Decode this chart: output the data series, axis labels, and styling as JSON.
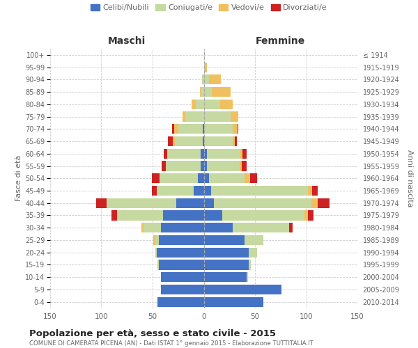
{
  "age_groups": [
    "0-4",
    "5-9",
    "10-14",
    "15-19",
    "20-24",
    "25-29",
    "30-34",
    "35-39",
    "40-44",
    "45-49",
    "50-54",
    "55-59",
    "60-64",
    "65-69",
    "70-74",
    "75-79",
    "80-84",
    "85-89",
    "90-94",
    "95-99",
    "100+"
  ],
  "birth_years": [
    "2010-2014",
    "2005-2009",
    "2000-2004",
    "1995-1999",
    "1990-1994",
    "1985-1989",
    "1980-1984",
    "1975-1979",
    "1970-1974",
    "1965-1969",
    "1960-1964",
    "1955-1959",
    "1950-1954",
    "1945-1949",
    "1940-1944",
    "1935-1939",
    "1930-1934",
    "1925-1929",
    "1920-1924",
    "1915-1919",
    "≤ 1914"
  ],
  "colors": {
    "celibe": "#4472C4",
    "coniugato": "#c5d9a0",
    "vedovo": "#f0c060",
    "divorziato": "#cc2222"
  },
  "maschi": {
    "celibe": [
      45,
      42,
      42,
      44,
      46,
      44,
      42,
      40,
      27,
      10,
      6,
      3,
      3,
      1,
      1,
      0,
      0,
      0,
      0,
      0,
      0
    ],
    "coniugato": [
      0,
      0,
      0,
      1,
      1,
      3,
      17,
      45,
      68,
      36,
      37,
      34,
      33,
      27,
      24,
      18,
      8,
      3,
      2,
      0,
      0
    ],
    "vedovo": [
      0,
      0,
      0,
      0,
      0,
      2,
      2,
      0,
      0,
      0,
      0,
      0,
      0,
      2,
      4,
      3,
      4,
      1,
      0,
      0,
      0
    ],
    "divorziato": [
      0,
      0,
      0,
      0,
      0,
      0,
      0,
      5,
      10,
      5,
      8,
      4,
      3,
      5,
      2,
      0,
      0,
      0,
      0,
      0,
      0
    ]
  },
  "femmine": {
    "celibe": [
      58,
      76,
      42,
      44,
      44,
      40,
      28,
      18,
      10,
      7,
      5,
      3,
      3,
      0,
      0,
      0,
      0,
      0,
      0,
      0,
      0
    ],
    "coniugata": [
      0,
      0,
      1,
      2,
      8,
      18,
      55,
      80,
      95,
      95,
      35,
      32,
      33,
      28,
      28,
      26,
      16,
      8,
      5,
      1,
      0
    ],
    "vedova": [
      0,
      0,
      0,
      0,
      0,
      0,
      0,
      4,
      6,
      4,
      5,
      2,
      2,
      2,
      5,
      8,
      12,
      18,
      12,
      2,
      0
    ],
    "divorziata": [
      0,
      0,
      0,
      0,
      0,
      0,
      4,
      5,
      12,
      5,
      7,
      5,
      4,
      2,
      1,
      0,
      0,
      0,
      0,
      0,
      0
    ]
  },
  "xlim": 150,
  "title": "Popolazione per età, sesso e stato civile - 2015",
  "subtitle": "COMUNE DI CAMERATA PICENA (AN) - Dati ISTAT 1° gennaio 2015 - Elaborazione TUTTITALIA.IT",
  "ylabel": "Fasce di età",
  "ylabel_right": "Anni di nascita",
  "xlabel_maschi": "Maschi",
  "xlabel_femmine": "Femmine",
  "background": "#ffffff",
  "grid_color": "#cccccc",
  "text_color": "#666666"
}
